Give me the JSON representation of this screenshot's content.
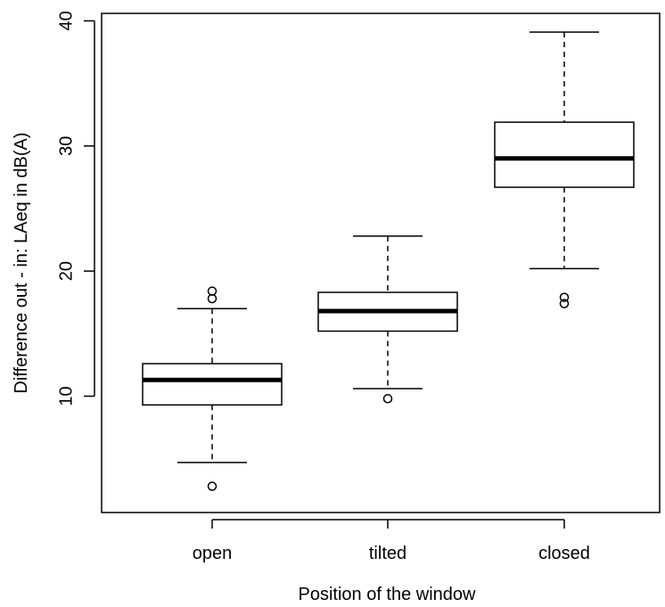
{
  "chart_data": {
    "type": "boxplot",
    "title": "",
    "xlabel": "Position of the window",
    "ylabel": "Difference out - in: LAeq in dB(A)",
    "ylim": [
      0.7,
      40.6
    ],
    "yticks": [
      10,
      20,
      30,
      40
    ],
    "grid": false,
    "legend": "none",
    "categories": [
      "open",
      "tilted",
      "closed"
    ],
    "boxes": [
      {
        "category": "open",
        "whisker_low": 4.7,
        "q1": 9.3,
        "median": 11.3,
        "q3": 12.6,
        "whisker_high": 17.0,
        "outliers": [
          2.8,
          17.8,
          18.4
        ]
      },
      {
        "category": "tilted",
        "whisker_low": 10.6,
        "q1": 15.2,
        "median": 16.8,
        "q3": 18.3,
        "whisker_high": 22.8,
        "outliers": [
          9.8
        ]
      },
      {
        "category": "closed",
        "whisker_low": 20.2,
        "q1": 26.7,
        "median": 29.0,
        "q3": 31.9,
        "whisker_high": 39.1,
        "outliers": [
          17.4,
          17.9
        ]
      }
    ]
  }
}
